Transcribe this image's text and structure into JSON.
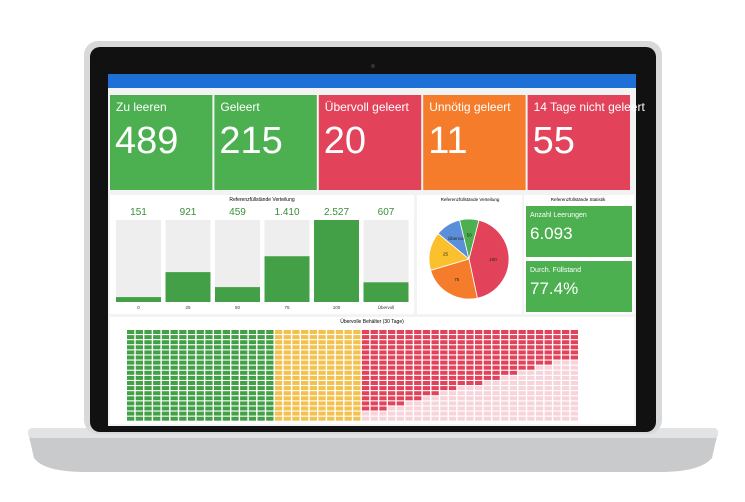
{
  "tiles": [
    {
      "label": "Zu leeren",
      "value": "489",
      "color": "#4caf50"
    },
    {
      "label": "Geleert",
      "value": "215",
      "color": "#4caf50"
    },
    {
      "label": "Übervoll geleert",
      "value": "20",
      "color": "#e2435b"
    },
    {
      "label": "Unnötig geleert",
      "value": "11",
      "color": "#f57c2a"
    },
    {
      "label": "14 Tage nicht geleert",
      "value": "55",
      "color": "#e2435b"
    }
  ],
  "bar_chart": {
    "type": "bar",
    "title": "Referenzfüllstände Verteilung",
    "categories": [
      "0",
      "25",
      "50",
      "75",
      "100",
      "Übervoll"
    ],
    "values": [
      151,
      921,
      459,
      1410,
      2527,
      607
    ],
    "value_labels": [
      "151",
      "921",
      "459",
      "1.410",
      "2.527",
      "607"
    ],
    "color": "#43a047"
  },
  "pie_chart": {
    "type": "pie",
    "title": "Referenzfüllstände Verteilung",
    "series": [
      {
        "name": "100",
        "value": 2527,
        "color": "#e2435b"
      },
      {
        "name": "75",
        "value": 1410,
        "color": "#f57c2a"
      },
      {
        "name": "25",
        "value": 921,
        "color": "#fbc02d"
      },
      {
        "name": "Übervoll",
        "value": 607,
        "color": "#5b8fd9"
      },
      {
        "name": "50",
        "value": 459,
        "color": "#4caf50"
      }
    ]
  },
  "stats": {
    "title": "Referenzfüllstände Statistik",
    "items": [
      {
        "label": "Anzahl Leerungen",
        "value": "6.093"
      },
      {
        "label": "Durch. Füllstand",
        "value": "77.4%"
      }
    ]
  },
  "heatmap": {
    "title": "Übervolle Behälter (30 Tage)"
  }
}
